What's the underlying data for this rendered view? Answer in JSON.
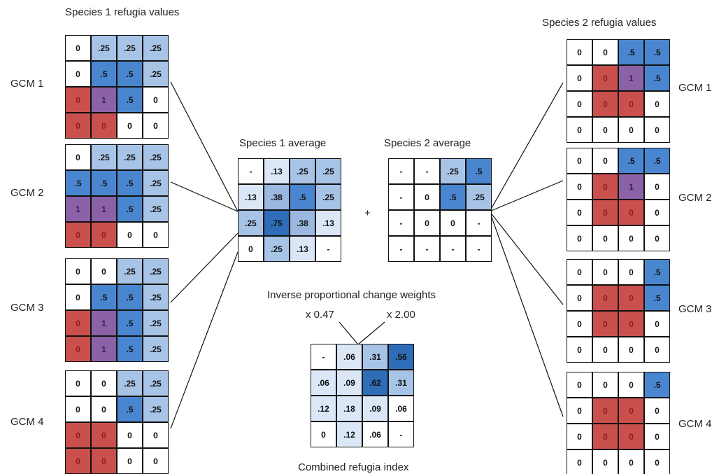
{
  "labels": {
    "species1_title": "Species 1 refugia values",
    "species2_title": "Species 2 refugia values",
    "species1_avg": "Species 1 average",
    "species2_avg": "Species 2 average",
    "plus": "+",
    "weights_title": "Inverse proportional change weights",
    "weight1": "x 0.47",
    "weight2": "x 2.00",
    "combined": "Combined refugia index"
  },
  "gcm_labels": {
    "left": [
      "GCM 1",
      "GCM 2",
      "GCM 3",
      "GCM 4"
    ],
    "right": [
      "GCM 1",
      "GCM 2",
      "GCM 3",
      "GCM 4"
    ]
  },
  "colors": {
    "white": "#ffffff",
    "light_blue": "#dbe7f7",
    "mid_blue": "#a7c4e6",
    "blue": "#4a86cf",
    "dark_blue": "#2f6db8",
    "red": "#c9504d",
    "purple": "#8b62a8",
    "grid_line": "#111111"
  },
  "grids": {
    "s1_gcm1": [
      [
        "0",
        ".25",
        ".25",
        ".25"
      ],
      [
        "0",
        ".5",
        ".5",
        ".25"
      ],
      [
        "0",
        "1",
        ".5",
        "0"
      ],
      [
        "0",
        "0",
        "0",
        "0"
      ]
    ],
    "s1_gcm2": [
      [
        "0",
        ".25",
        ".25",
        ".25"
      ],
      [
        ".5",
        ".5",
        ".5",
        ".25"
      ],
      [
        "1",
        "1",
        ".5",
        ".25"
      ],
      [
        "0",
        "0",
        "0",
        "0"
      ]
    ],
    "s1_gcm3": [
      [
        "0",
        "0",
        ".25",
        ".25"
      ],
      [
        "0",
        ".5",
        ".5",
        ".25"
      ],
      [
        "0",
        "1",
        ".5",
        ".25"
      ],
      [
        "0",
        "1",
        ".5",
        ".25"
      ]
    ],
    "s1_gcm4": [
      [
        "0",
        "0",
        ".25",
        ".25"
      ],
      [
        "0",
        "0",
        ".5",
        ".25"
      ],
      [
        "0",
        "0",
        "0",
        "0"
      ],
      [
        "0",
        "0",
        "0",
        "0"
      ]
    ],
    "s2_gcm1": [
      [
        "0",
        "0",
        ".5",
        ".5"
      ],
      [
        "0",
        "0",
        "1",
        ".5"
      ],
      [
        "0",
        "0",
        "0",
        "0"
      ],
      [
        "0",
        "0",
        "0",
        "0"
      ]
    ],
    "s2_gcm2": [
      [
        "0",
        "0",
        ".5",
        ".5"
      ],
      [
        "0",
        "0",
        "1",
        "0"
      ],
      [
        "0",
        "0",
        "0",
        "0"
      ],
      [
        "0",
        "0",
        "0",
        "0"
      ]
    ],
    "s2_gcm3": [
      [
        "0",
        "0",
        "0",
        ".5"
      ],
      [
        "0",
        "0",
        "0",
        ".5"
      ],
      [
        "0",
        "0",
        "0",
        "0"
      ],
      [
        "0",
        "0",
        "0",
        "0"
      ]
    ],
    "s2_gcm4": [
      [
        "0",
        "0",
        "0",
        ".5"
      ],
      [
        "0",
        "0",
        "0",
        "0"
      ],
      [
        "0",
        "0",
        "0",
        "0"
      ],
      [
        "0",
        "0",
        "0",
        "0"
      ]
    ],
    "s1_avg": [
      [
        "-",
        ".13",
        ".25",
        ".25"
      ],
      [
        ".13",
        ".38",
        ".5",
        ".25"
      ],
      [
        ".25",
        ".75",
        ".38",
        ".13"
      ],
      [
        "0",
        ".25",
        ".13",
        "-"
      ]
    ],
    "s2_avg": [
      [
        "-",
        "-",
        ".25",
        ".5"
      ],
      [
        "-",
        "0",
        ".5",
        ".25"
      ],
      [
        "-",
        "0",
        "0",
        "-"
      ],
      [
        "-",
        "-",
        "-",
        "-"
      ]
    ],
    "combined": [
      [
        "-",
        ".06",
        ".31",
        ".56"
      ],
      [
        ".06",
        ".09",
        ".62",
        ".31"
      ],
      [
        ".12",
        ".18",
        ".09",
        ".06"
      ],
      [
        "0",
        ".12",
        ".06",
        "-"
      ]
    ]
  },
  "grid_colors": {
    "s1_gcm1": [
      [
        "w",
        "b2",
        "b2",
        "b2"
      ],
      [
        "w",
        "b4",
        "b4",
        "b2"
      ],
      [
        "r",
        "p",
        "b4",
        "w"
      ],
      [
        "r",
        "r",
        "w",
        "w"
      ]
    ],
    "s1_gcm2": [
      [
        "w",
        "b2",
        "b2",
        "b2"
      ],
      [
        "b4",
        "b4",
        "b4",
        "b2"
      ],
      [
        "p",
        "p",
        "b4",
        "b2"
      ],
      [
        "r",
        "r",
        "w",
        "w"
      ]
    ],
    "s1_gcm3": [
      [
        "w",
        "w",
        "b2",
        "b2"
      ],
      [
        "w",
        "b4",
        "b4",
        "b2"
      ],
      [
        "r",
        "p",
        "b4",
        "b2"
      ],
      [
        "r",
        "p",
        "b4",
        "b2"
      ]
    ],
    "s1_gcm4": [
      [
        "w",
        "w",
        "b2",
        "b2"
      ],
      [
        "w",
        "w",
        "b4",
        "b2"
      ],
      [
        "r",
        "r",
        "w",
        "w"
      ],
      [
        "r",
        "r",
        "w",
        "w"
      ]
    ],
    "s2_gcm1": [
      [
        "w",
        "w",
        "b4",
        "b4"
      ],
      [
        "w",
        "r",
        "p",
        "b4"
      ],
      [
        "w",
        "r",
        "r",
        "w"
      ],
      [
        "w",
        "w",
        "w",
        "w"
      ]
    ],
    "s2_gcm2": [
      [
        "w",
        "w",
        "b4",
        "b4"
      ],
      [
        "w",
        "r",
        "p",
        "w"
      ],
      [
        "w",
        "r",
        "r",
        "w"
      ],
      [
        "w",
        "w",
        "w",
        "w"
      ]
    ],
    "s2_gcm3": [
      [
        "w",
        "w",
        "w",
        "b4"
      ],
      [
        "w",
        "r",
        "r",
        "b4"
      ],
      [
        "w",
        "r",
        "r",
        "w"
      ],
      [
        "w",
        "w",
        "w",
        "w"
      ]
    ],
    "s2_gcm4": [
      [
        "w",
        "w",
        "w",
        "b4"
      ],
      [
        "w",
        "r",
        "r",
        "w"
      ],
      [
        "w",
        "r",
        "r",
        "w"
      ],
      [
        "w",
        "w",
        "w",
        "w"
      ]
    ],
    "s1_avg": [
      [
        "w",
        "b1",
        "b2",
        "b2"
      ],
      [
        "b1",
        "b3",
        "b4",
        "b2"
      ],
      [
        "b2",
        "b5",
        "b3",
        "b1"
      ],
      [
        "w",
        "b2",
        "b1",
        "w"
      ]
    ],
    "s2_avg": [
      [
        "w",
        "w",
        "b2",
        "b4"
      ],
      [
        "w",
        "w",
        "b4",
        "b2"
      ],
      [
        "w",
        "w",
        "w",
        "w"
      ],
      [
        "w",
        "w",
        "w",
        "w"
      ]
    ],
    "combined": [
      [
        "w",
        "b1",
        "b2",
        "b5"
      ],
      [
        "b1",
        "b1",
        "b5",
        "b2"
      ],
      [
        "b1",
        "b1",
        "b1",
        "w"
      ],
      [
        "w",
        "b1",
        "w",
        "w"
      ]
    ]
  }
}
